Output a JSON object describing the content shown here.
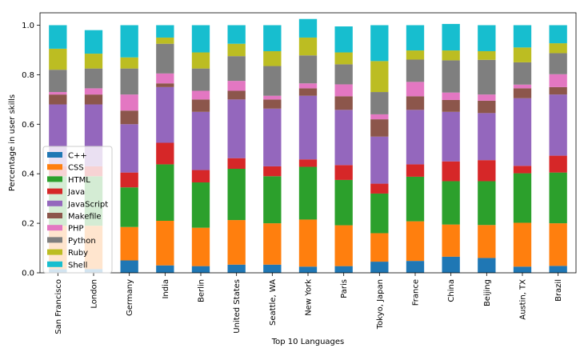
{
  "chart_data": {
    "type": "bar",
    "stacked": true,
    "title": "",
    "xlabel": "Top 10 Languages",
    "ylabel": "Percentage in user skills",
    "ylim": [
      0,
      1.0
    ],
    "yticks": [
      "0.0",
      "0.2",
      "0.4",
      "0.6",
      "0.8",
      "1.0"
    ],
    "legend_position": "lower-left",
    "grid": false,
    "categories": [
      "San Francisco",
      "London",
      "Germany",
      "India",
      "Berlin",
      "United States",
      "Seattle, WA",
      "New York",
      "Paris",
      "Tokyo, Japan",
      "France",
      "China",
      "Beijing",
      "Austin, TX",
      "Brazil"
    ],
    "series": [
      {
        "name": "C++",
        "color": "#1f77b4",
        "values": [
          0.015,
          0.015,
          0.05,
          0.03,
          0.027,
          0.033,
          0.033,
          0.025,
          0.027,
          0.045,
          0.048,
          0.065,
          0.06,
          0.025,
          0.028
        ]
      },
      {
        "name": "CSS",
        "color": "#ff7f0e",
        "values": [
          0.175,
          0.175,
          0.135,
          0.18,
          0.155,
          0.18,
          0.167,
          0.19,
          0.165,
          0.115,
          0.16,
          0.13,
          0.133,
          0.177,
          0.172
        ]
      },
      {
        "name": "HTML",
        "color": "#2ca02c",
        "values": [
          0.2,
          0.2,
          0.16,
          0.228,
          0.183,
          0.207,
          0.19,
          0.213,
          0.183,
          0.16,
          0.18,
          0.175,
          0.177,
          0.2,
          0.205
        ]
      },
      {
        "name": "Java",
        "color": "#d62728",
        "values": [
          0.04,
          0.04,
          0.06,
          0.087,
          0.05,
          0.043,
          0.04,
          0.03,
          0.06,
          0.04,
          0.05,
          0.08,
          0.085,
          0.03,
          0.068
        ]
      },
      {
        "name": "JavaScript",
        "color": "#9467bd",
        "values": [
          0.25,
          0.25,
          0.195,
          0.225,
          0.235,
          0.237,
          0.233,
          0.257,
          0.223,
          0.19,
          0.22,
          0.2,
          0.19,
          0.273,
          0.247
        ]
      },
      {
        "name": "Makefile",
        "color": "#8c564b",
        "values": [
          0.04,
          0.04,
          0.055,
          0.015,
          0.05,
          0.035,
          0.037,
          0.03,
          0.055,
          0.07,
          0.055,
          0.048,
          0.05,
          0.04,
          0.03
        ]
      },
      {
        "name": "PHP",
        "color": "#e377c2",
        "values": [
          0.01,
          0.025,
          0.065,
          0.04,
          0.035,
          0.04,
          0.015,
          0.02,
          0.048,
          0.02,
          0.058,
          0.03,
          0.025,
          0.015,
          0.052
        ]
      },
      {
        "name": "Python",
        "color": "#7f7f7f",
        "values": [
          0.09,
          0.08,
          0.105,
          0.12,
          0.09,
          0.1,
          0.12,
          0.113,
          0.081,
          0.09,
          0.09,
          0.13,
          0.14,
          0.09,
          0.085
        ]
      },
      {
        "name": "Ruby",
        "color": "#bcbd22",
        "values": [
          0.085,
          0.06,
          0.045,
          0.025,
          0.065,
          0.05,
          0.06,
          0.072,
          0.048,
          0.125,
          0.037,
          0.04,
          0.035,
          0.06,
          0.04
        ]
      },
      {
        "name": "Shell",
        "color": "#17becf",
        "values": [
          0.095,
          0.095,
          0.13,
          0.05,
          0.11,
          0.075,
          0.105,
          0.075,
          0.105,
          0.145,
          0.102,
          0.107,
          0.105,
          0.09,
          0.073
        ]
      }
    ]
  }
}
